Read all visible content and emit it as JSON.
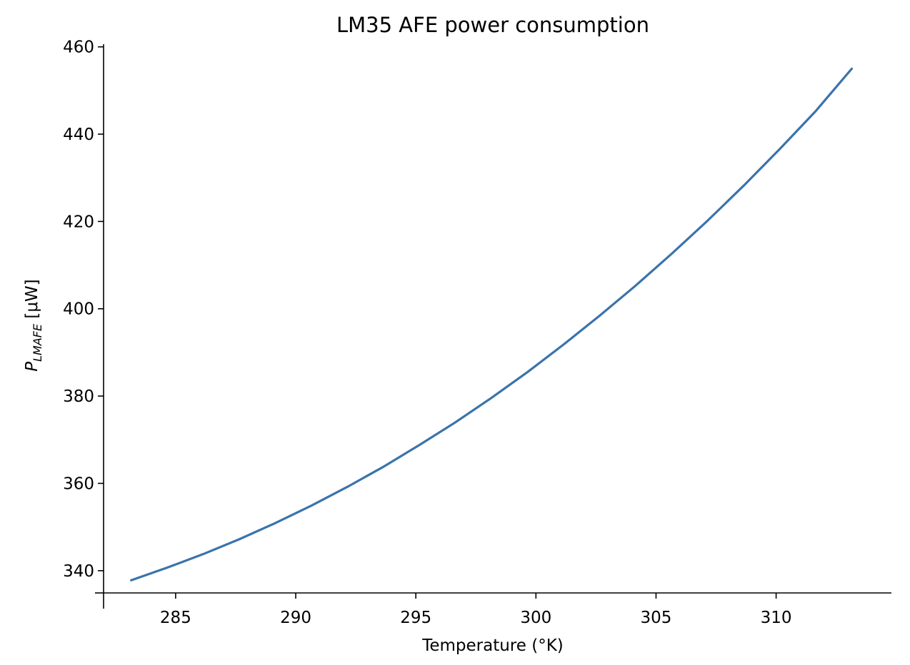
{
  "chart_data": {
    "type": "line",
    "title": "LM35 AFE power consumption",
    "xlabel": "Temperature (°K)",
    "ylabel": {
      "symbol": "P",
      "subscript": "LMAFE",
      "unit": " [μW]"
    },
    "xlim": [
      282.0,
      314.8
    ],
    "ylim": [
      334.9,
      460.6
    ],
    "xticks": [
      285,
      290,
      295,
      300,
      305,
      310
    ],
    "yticks": [
      340,
      360,
      380,
      400,
      420,
      440,
      460
    ],
    "grid": false,
    "legend": "none",
    "series": [
      {
        "color": "#3a73ab",
        "x": [
          283.15,
          284.65,
          286.15,
          287.65,
          289.15,
          290.65,
          292.15,
          293.65,
          295.15,
          296.65,
          298.15,
          299.65,
          301.15,
          302.65,
          304.15,
          305.65,
          307.15,
          308.65,
          310.15,
          311.65,
          313.15
        ],
        "y": [
          337.8,
          340.7,
          343.8,
          347.2,
          350.9,
          354.9,
          359.2,
          363.8,
          368.8,
          374.0,
          379.6,
          385.5,
          391.8,
          398.4,
          405.3,
          412.6,
          420.2,
          428.2,
          436.6,
          445.3,
          455.0
        ]
      }
    ]
  }
}
